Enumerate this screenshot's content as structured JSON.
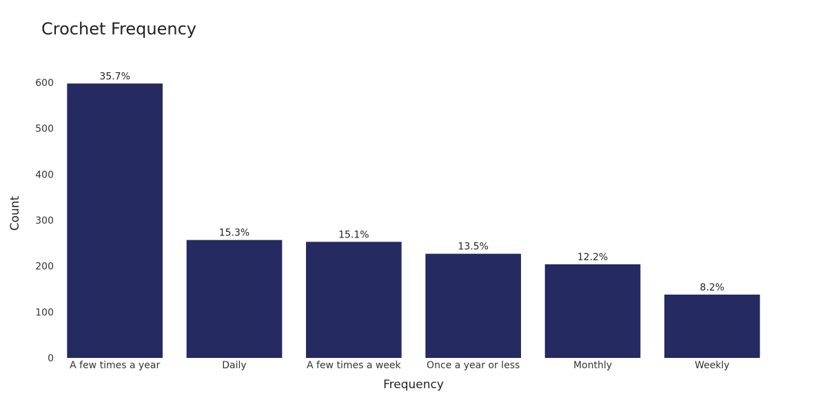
{
  "chart_data": {
    "type": "bar",
    "title": "Crochet Frequency",
    "xlabel": "Frequency",
    "ylabel": "Count",
    "categories": [
      "A few times a year",
      "Daily",
      "A few times a week",
      "Once a year or less",
      "Monthly",
      "Weekly"
    ],
    "values": [
      598,
      257,
      253,
      227,
      204,
      138
    ],
    "labels": [
      "35.7%",
      "15.3%",
      "15.1%",
      "13.5%",
      "12.2%",
      "8.2%"
    ],
    "yticks": [
      0,
      100,
      200,
      300,
      400,
      500,
      600
    ],
    "ylim": [
      0,
      630
    ],
    "grid": false,
    "bar_color": "#252a61"
  }
}
